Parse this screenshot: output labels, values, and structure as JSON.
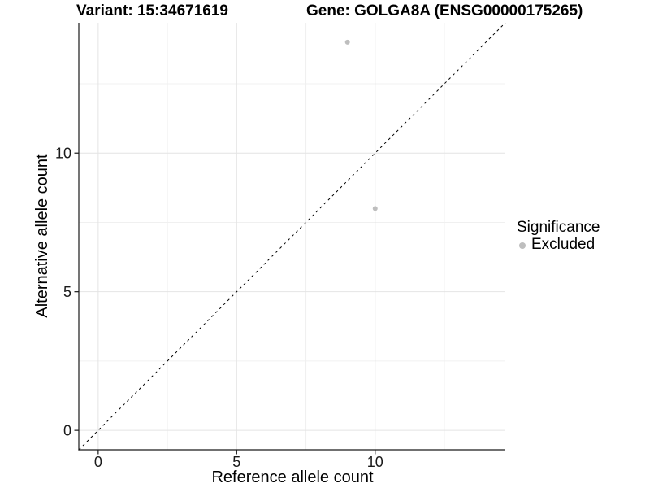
{
  "header": {
    "variant_title": "Variant: 15:34671619",
    "gene_title": "Gene: GOLGA8A (ENSG00000175265)"
  },
  "chart_data": {
    "type": "scatter",
    "xlabel": "Reference allele count",
    "ylabel": "Alternative allele count",
    "xlim": [
      -0.7,
      14.7
    ],
    "ylim": [
      -0.7,
      14.7
    ],
    "x_ticks": [
      0,
      5,
      10
    ],
    "y_ticks": [
      0,
      5,
      10
    ],
    "x_minor_ticks": [
      2.5,
      7.5,
      12.5
    ],
    "y_minor_ticks": [
      2.5,
      7.5,
      12.5
    ],
    "grid": "major+minor",
    "series": [
      {
        "name": "Excluded",
        "color": "#bebebe",
        "points": [
          {
            "x": 9,
            "y": 14
          },
          {
            "x": 10,
            "y": 8
          }
        ]
      }
    ],
    "reference_line": {
      "slope": 1,
      "intercept": 0,
      "style": "dashed",
      "color": "#000000"
    },
    "colors": {
      "grid_major": "#e4e4e4",
      "grid_minor": "#f0f0f0",
      "axis_line": "#1a1a1a",
      "tick_mark": "#1a1a1a"
    },
    "legend": {
      "title": "Significance",
      "position": "right",
      "items": [
        {
          "label": "Excluded",
          "color": "#bebebe"
        }
      ]
    }
  }
}
